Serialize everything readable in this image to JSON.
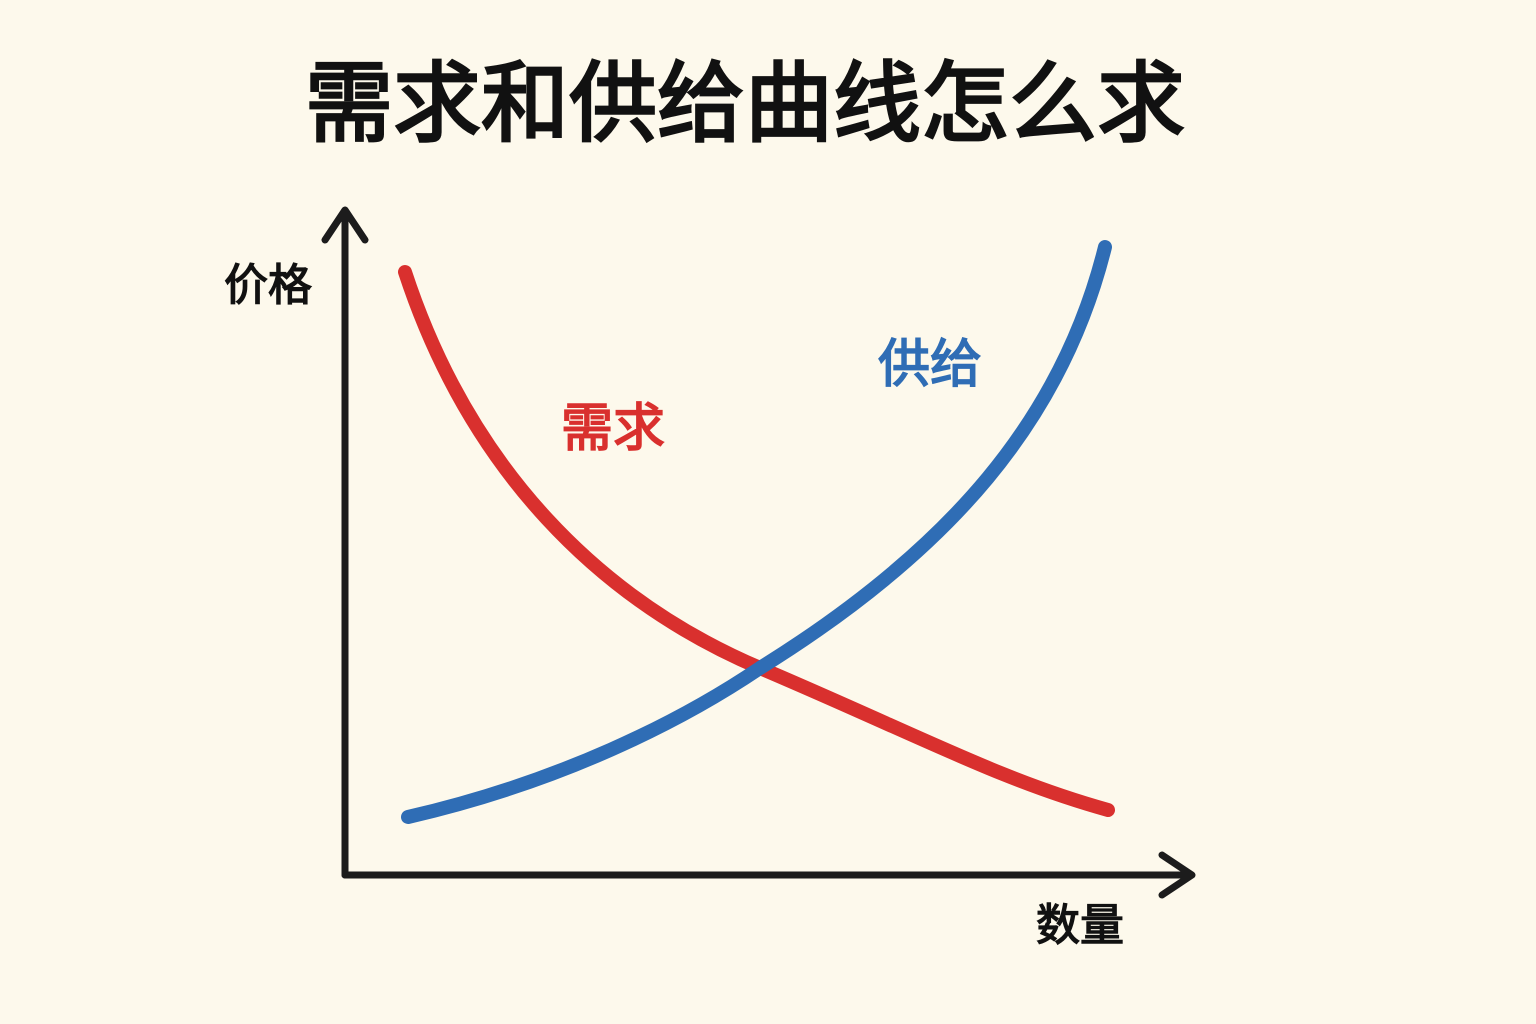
{
  "title": "需求和供给曲线怎么求",
  "axes": {
    "y_label": "价格",
    "x_label": "数量"
  },
  "curves": {
    "demand_label": "需求",
    "supply_label": "供给"
  }
}
